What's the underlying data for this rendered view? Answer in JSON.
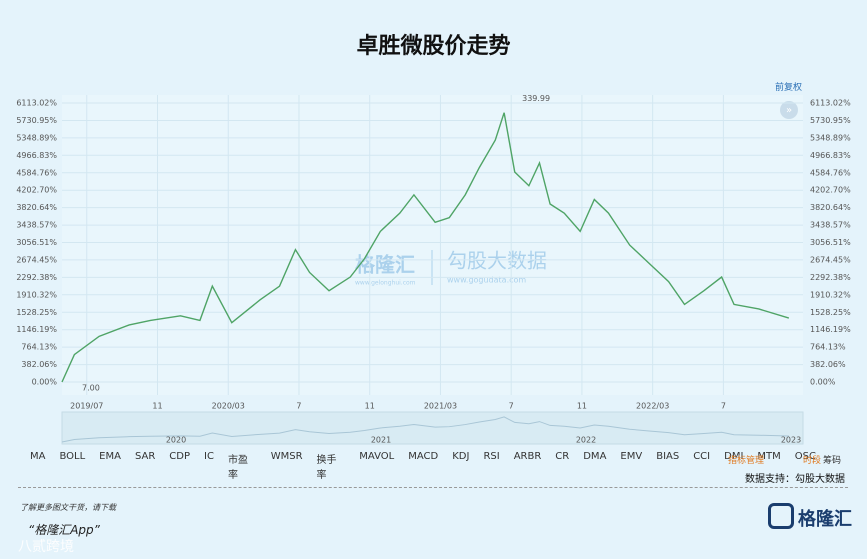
{
  "header": {
    "title": "卓胜微股价走势",
    "adjust": "前复权"
  },
  "chart_data": {
    "type": "line",
    "color": "#4fa466",
    "x": [
      -1.4,
      -0.7,
      0.7,
      2.4,
      3.6,
      5.3,
      6.4,
      7.1,
      8.2,
      9.8,
      10.9,
      11.8,
      12.6,
      13.7,
      14.9,
      15.7,
      16.6,
      17.7,
      18.5,
      19.7,
      20.5,
      21.4,
      22.2,
      23.1,
      23.6,
      24.2,
      25.0,
      25.6,
      26.2,
      27.0,
      27.9,
      28.7,
      29.5,
      30.7,
      31.8,
      32.9,
      33.8,
      34.9,
      35.9,
      36.6,
      38.0,
      39.7
    ],
    "values": [
      0,
      600,
      1000,
      1250,
      1350,
      1450,
      1350,
      2100,
      1300,
      1800,
      2100,
      2900,
      2400,
      2000,
      2300,
      2700,
      3300,
      3700,
      4100,
      3500,
      3600,
      4100,
      4700,
      5300,
      5900,
      4600,
      4300,
      4800,
      3900,
      3700,
      3300,
      4000,
      3700,
      3000,
      2600,
      2200,
      1700,
      2000,
      2300,
      1700,
      1600,
      1400
    ],
    "xlim": [
      -1.4,
      40.5
    ],
    "xticks": [
      {
        "value": 0,
        "label": "2019/07"
      },
      {
        "value": 4,
        "label": "11"
      },
      {
        "value": 8,
        "label": "2020/03"
      },
      {
        "value": 12,
        "label": "7"
      },
      {
        "value": 16,
        "label": "11"
      },
      {
        "value": 20,
        "label": "2021/03"
      },
      {
        "value": 24,
        "label": "7"
      },
      {
        "value": 28,
        "label": "11"
      },
      {
        "value": 32,
        "label": "2022/03"
      },
      {
        "value": 36,
        "label": "7"
      }
    ],
    "ylim": [
      0,
      6113.02
    ],
    "yticks": [
      {
        "value": 0,
        "label": "0.00%"
      },
      {
        "value": 382.06,
        "label": "382.06%"
      },
      {
        "value": 764.13,
        "label": "764.13%"
      },
      {
        "value": 1146.19,
        "label": "1146.19%"
      },
      {
        "value": 1528.25,
        "label": "1528.25%"
      },
      {
        "value": 1910.32,
        "label": "1910.32%"
      },
      {
        "value": 2292.38,
        "label": "2292.38%"
      },
      {
        "value": 2674.45,
        "label": "2674.45%"
      },
      {
        "value": 3056.51,
        "label": "3056.51%"
      },
      {
        "value": 3438.57,
        "label": "3438.57%"
      },
      {
        "value": 3820.64,
        "label": "3820.64%"
      },
      {
        "value": 4202.7,
        "label": "4202.70%"
      },
      {
        "value": 4584.76,
        "label": "4584.76%"
      },
      {
        "value": 4966.83,
        "label": "4966.83%"
      },
      {
        "value": 5348.89,
        "label": "5348.89%"
      },
      {
        "value": 5730.95,
        "label": "5730.95%"
      },
      {
        "value": 6113.02,
        "label": "6113.02%"
      }
    ],
    "grid": true,
    "max_label": "339.99",
    "min_label": "7.00",
    "navigator_labels": [
      "2020",
      "2021",
      "2022",
      "2023"
    ]
  },
  "toolbar": {
    "tabs": [
      "MA",
      "BOLL",
      "EMA",
      "SAR",
      "CDP",
      "IC",
      "市盈率",
      "WMSR",
      "换手率",
      "MAVOL",
      "MACD",
      "KDJ",
      "RSI",
      "ARBR",
      "CR",
      "DMA",
      "EMV",
      "BIAS",
      "CCI",
      "DMI",
      "MTM",
      "OSC"
    ],
    "manage": "指标管理",
    "period": "时段",
    "chips": "筹码",
    "source": "数据支持：勾股大数据"
  },
  "watermark": {
    "brand": "格隆汇",
    "site": "www.gelonghui.com",
    "text": "勾股大数据",
    "url": "www.gogudata.com"
  },
  "footer": {
    "promo": "了解更多图文干货，请下载",
    "app": "“格隆汇App”",
    "logo": "格隆汇",
    "corner": "八贰跨境"
  }
}
